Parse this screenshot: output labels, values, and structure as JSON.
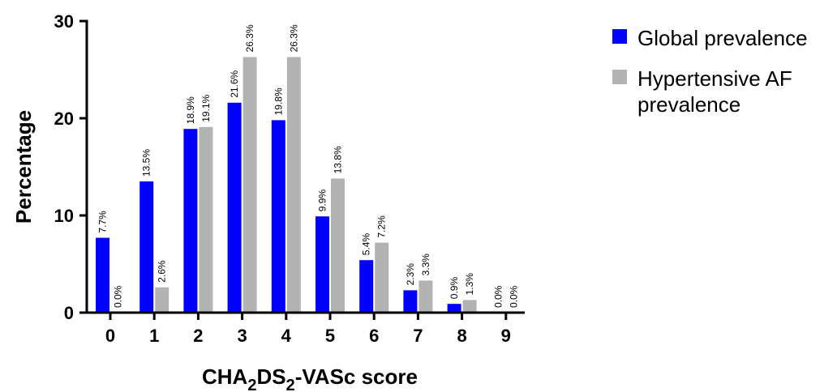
{
  "chart_data": {
    "type": "bar",
    "categories": [
      "0",
      "1",
      "2",
      "3",
      "4",
      "5",
      "6",
      "7",
      "8",
      "9"
    ],
    "series": [
      {
        "name": "Global prevalence",
        "color": "#0000ff",
        "values": [
          7.7,
          13.5,
          18.9,
          21.6,
          19.8,
          9.9,
          5.4,
          2.3,
          0.9,
          0.0
        ],
        "labels": [
          "7.7%",
          "13.5%",
          "18.9%",
          "21.6%",
          "19.8%",
          "9.9%",
          "5.4%",
          "2.3%",
          "0.9%",
          "0.0%"
        ]
      },
      {
        "name": "Hypertensive AF prevalence",
        "color": "#b3b3b3",
        "values": [
          0.0,
          2.6,
          19.1,
          26.3,
          26.3,
          13.8,
          7.2,
          3.3,
          1.3,
          0.0
        ],
        "labels": [
          "0.0%",
          "2.6%",
          "19.1%",
          "26.3%",
          "26.3%",
          "13.8%",
          "7.2%",
          "3.3%",
          "1.3%",
          "0.0%"
        ]
      }
    ],
    "legend_lines": [
      [
        "Global prevalence"
      ],
      [
        "Hypertensive AF",
        "prevalence"
      ]
    ],
    "xlabel": {
      "main": "CHA",
      "sub1": "2",
      "mid": "DS",
      "sub2": "2",
      "tail": "-VASc score"
    },
    "ylabel": "Percentage",
    "ylim": [
      0,
      30
    ],
    "yticks": [
      "0",
      "10",
      "20",
      "30"
    ],
    "legend_position": "right",
    "grid": false
  }
}
